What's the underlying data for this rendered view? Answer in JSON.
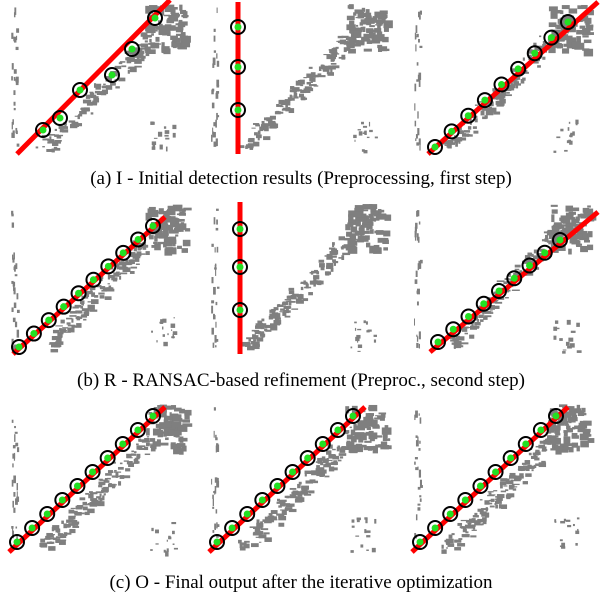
{
  "figure": {
    "rows": [
      {
        "caption": "(a) I - Initial detection results (Preprocessing, first step)"
      },
      {
        "caption": "(b) R - RANSAC-based refinement (Preproc., second step)"
      },
      {
        "caption": "(c) O - Final output after the iterative optimization"
      }
    ]
  }
}
